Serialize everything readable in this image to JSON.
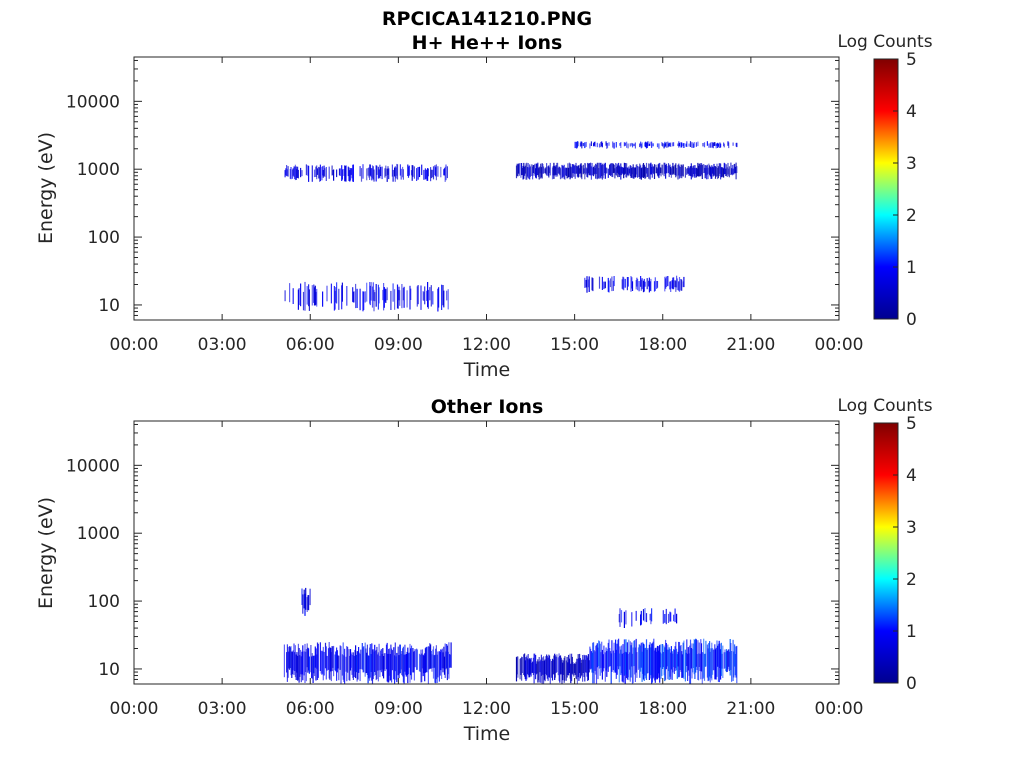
{
  "figure": {
    "title": "RPCICA141210.PNG"
  },
  "colormap": {
    "name": "jet",
    "stops": [
      "#00008f",
      "#0000ff",
      "#00ffff",
      "#ffff00",
      "#ff0000",
      "#800000"
    ]
  },
  "chart_data": [
    {
      "type": "heatmap",
      "title": "H+ He++ Ions",
      "xlabel": "Time",
      "ylabel": "Energy (eV)",
      "x_ticks": [
        "00:00",
        "03:00",
        "06:00",
        "09:00",
        "12:00",
        "15:00",
        "18:00",
        "21:00",
        "00:00"
      ],
      "xlim_hours": [
        0,
        24
      ],
      "y_scale": "log",
      "ylim": [
        6,
        45000
      ],
      "y_ticks": [
        {
          "value": 10,
          "label": "10"
        },
        {
          "value": 100,
          "label": "100"
        },
        {
          "value": 1000,
          "label": "1000"
        },
        {
          "value": 10000,
          "label": "10000"
        }
      ],
      "colorbar": {
        "label": "Log Counts",
        "range": [
          0,
          5
        ],
        "ticks": [
          "0",
          "1",
          "2",
          "3",
          "4",
          "5"
        ]
      },
      "populations": [
        {
          "t_start": 5.1,
          "t_end": 10.7,
          "e_low": 650,
          "e_high": 1200,
          "density": 0.55,
          "log_counts": 0.7
        },
        {
          "t_start": 13.0,
          "t_end": 20.5,
          "e_low": 700,
          "e_high": 1250,
          "density": 0.9,
          "log_counts": 0.45
        },
        {
          "t_start": 15.0,
          "t_end": 20.5,
          "e_low": 2000,
          "e_high": 2600,
          "density": 0.5,
          "log_counts": 0.85
        },
        {
          "t_start": 5.1,
          "t_end": 10.7,
          "e_low": 8,
          "e_high": 22,
          "density": 0.35,
          "log_counts": 0.8
        },
        {
          "t_start": 15.3,
          "t_end": 18.7,
          "e_low": 15,
          "e_high": 27,
          "density": 0.45,
          "log_counts": 0.75
        }
      ]
    },
    {
      "type": "heatmap",
      "title": "Other Ions",
      "xlabel": "Time",
      "ylabel": "Energy (eV)",
      "x_ticks": [
        "00:00",
        "03:00",
        "06:00",
        "09:00",
        "12:00",
        "15:00",
        "18:00",
        "21:00",
        "00:00"
      ],
      "xlim_hours": [
        0,
        24
      ],
      "y_scale": "log",
      "ylim": [
        6,
        45000
      ],
      "y_ticks": [
        {
          "value": 10,
          "label": "10"
        },
        {
          "value": 100,
          "label": "100"
        },
        {
          "value": 1000,
          "label": "1000"
        },
        {
          "value": 10000,
          "label": "10000"
        }
      ],
      "colorbar": {
        "label": "Log Counts",
        "range": [
          0,
          5
        ],
        "ticks": [
          "0",
          "1",
          "2",
          "3",
          "4",
          "5"
        ]
      },
      "populations": [
        {
          "t_start": 5.1,
          "t_end": 10.8,
          "e_low": 6,
          "e_high": 25,
          "density": 0.85,
          "log_counts": 0.9
        },
        {
          "t_start": 13.0,
          "t_end": 15.5,
          "e_low": 6,
          "e_high": 17,
          "density": 0.95,
          "log_counts": 0.5
        },
        {
          "t_start": 15.5,
          "t_end": 20.5,
          "e_low": 6,
          "e_high": 28,
          "density": 0.95,
          "log_counts": 1.1
        },
        {
          "t_start": 5.7,
          "t_end": 6.0,
          "e_low": 60,
          "e_high": 160,
          "density": 0.5,
          "log_counts": 0.8
        },
        {
          "t_start": 16.5,
          "t_end": 18.5,
          "e_low": 40,
          "e_high": 80,
          "density": 0.3,
          "log_counts": 0.9
        }
      ]
    }
  ]
}
